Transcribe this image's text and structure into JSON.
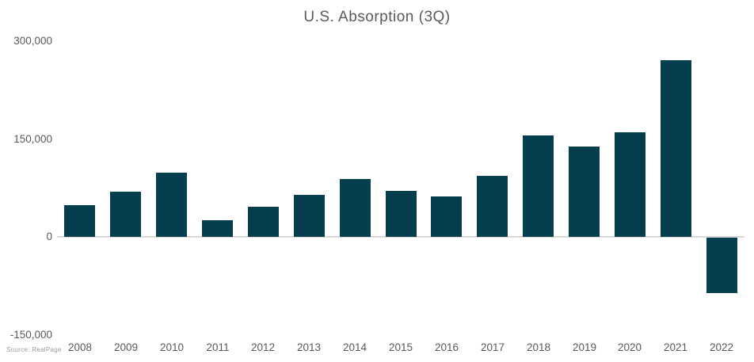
{
  "source_label": "Source:  RealPage",
  "colors": {
    "bar": "#053F4F",
    "zero_line": "#D9D9D9",
    "tick_label": "#595959",
    "title": "#595959",
    "source": "#9A9A9A"
  },
  "chart_data": {
    "type": "bar",
    "title": "U.S. Absorption (3Q)",
    "categories": [
      "2008",
      "2009",
      "2010",
      "2011",
      "2012",
      "2013",
      "2014",
      "2015",
      "2016",
      "2017",
      "2018",
      "2019",
      "2020",
      "2021",
      "2022"
    ],
    "values": [
      49000,
      69000,
      98000,
      25000,
      46000,
      64000,
      89000,
      71000,
      62000,
      93000,
      155000,
      139000,
      160000,
      271000,
      -85000
    ],
    "xlabel": "",
    "ylabel": "",
    "ylim": [
      -150000,
      300000
    ],
    "yticks": [
      -150000,
      0,
      150000,
      300000
    ],
    "ytick_labels": [
      "-150,000",
      "0",
      "150,000",
      "300,000"
    ],
    "grid": "zero-line-only",
    "legend": "none"
  }
}
